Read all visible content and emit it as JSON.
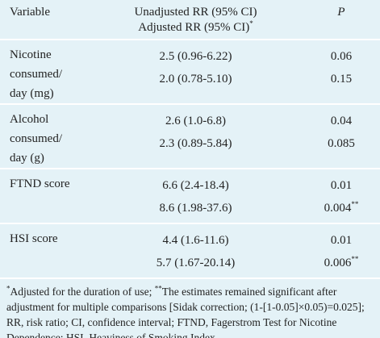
{
  "table": {
    "header": {
      "variable": "Variable",
      "rr_unadjusted": "Unadjusted RR (95% CI)",
      "rr_adjusted": "Adjusted RR (95% CI)",
      "rr_adjusted_sup": "*",
      "p": "P"
    },
    "rows": [
      {
        "label": "Nicotine consumed/ day (mg)",
        "values": [
          "2.5 (0.96-6.22)",
          "2.0 (0.78-5.10)"
        ],
        "p": [
          "0.06",
          "0.15"
        ],
        "p_sup": [
          null,
          null
        ]
      },
      {
        "label": "Alcohol consumed/ day (g)",
        "values": [
          "2.6 (1.0-6.8)",
          "2.3 (0.89-5.84)"
        ],
        "p": [
          "0.04",
          "0.085"
        ],
        "p_sup": [
          null,
          null
        ]
      },
      {
        "label": "FTND score",
        "values": [
          "6.6 (2.4-18.4)",
          "8.6 (1.98-37.6)"
        ],
        "p": [
          "0.01",
          "0.004"
        ],
        "p_sup": [
          null,
          "**"
        ]
      },
      {
        "label": "HSI score",
        "values": [
          "4.4 (1.6-11.6)",
          "5.7 (1.67-20.14)"
        ],
        "p": [
          "0.01",
          "0.006"
        ],
        "p_sup": [
          null,
          "**"
        ]
      }
    ],
    "footnote": [
      {
        "sup": "*",
        "text": "Adjusted for the duration of use; "
      },
      {
        "sup": "**",
        "text": "The estimates remained significant after adjustment for multiple comparisons [Sidak correction; (1-[1-0.05]×0.05)=0.025]; RR, risk ratio; CI, confidence interval; FTND, Fagerstrom Test for Nicotine Dependence; HSI, Heaviness of Smoking Index"
      }
    ]
  }
}
